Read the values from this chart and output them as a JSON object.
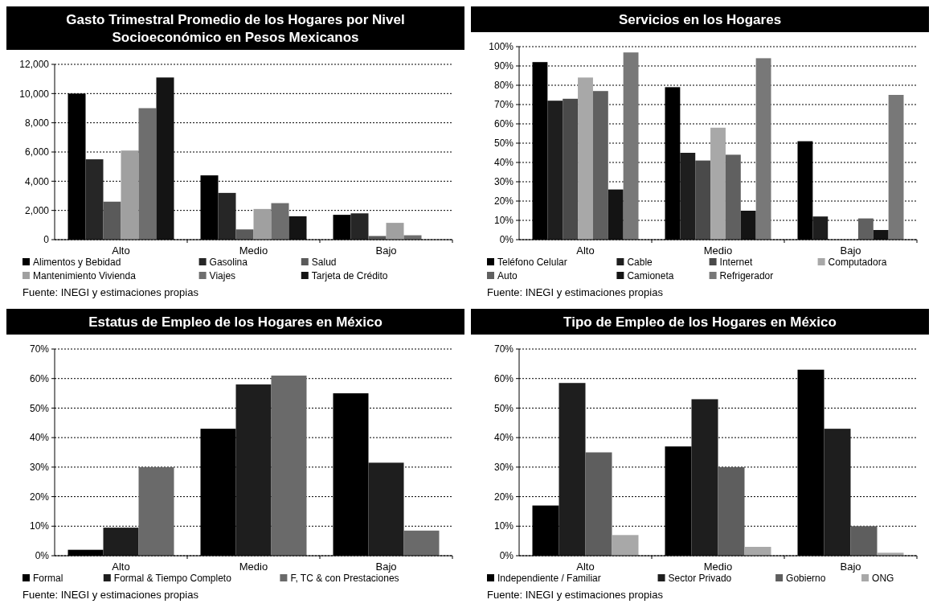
{
  "chart_data": [
    {
      "type": "bar",
      "title": "Gasto Trimestral Promedio de los Hogares por Nivel Socioeconómico en Pesos Mexicanos",
      "categories": [
        "Alto",
        "Medio",
        "Bajo"
      ],
      "series": [
        {
          "name": "Alimentos y Bebidad",
          "color": "#000000",
          "values": [
            10000,
            4400,
            1700
          ]
        },
        {
          "name": "Gasolina",
          "color": "#262626",
          "values": [
            5500,
            3200,
            1800
          ]
        },
        {
          "name": "Salud",
          "color": "#5a5a5a",
          "values": [
            2600,
            700,
            250
          ]
        },
        {
          "name": "Mantenimiento Vivienda",
          "color": "#a0a0a0",
          "values": [
            6100,
            2100,
            1150
          ]
        },
        {
          "name": "Viajes",
          "color": "#6e6e6e",
          "values": [
            9000,
            2500,
            300
          ]
        },
        {
          "name": "Tarjeta de Crédito",
          "color": "#141414",
          "values": [
            11100,
            1600,
            null
          ]
        }
      ],
      "ylim": [
        0,
        12000
      ],
      "yticks": [
        0,
        {
          "value": 2000,
          "label": "2,000"
        },
        {
          "value": 4000,
          "label": "4,000"
        },
        {
          "value": 6000,
          "label": "6,000"
        },
        {
          "value": 8000,
          "label": "8,000"
        },
        {
          "value": 10000,
          "label": "10,000"
        },
        {
          "value": 12000,
          "label": "12,000"
        }
      ],
      "grid": "y",
      "legend": "bottom",
      "annotations": [
        "Fuente: INEGI y estimaciones propias"
      ]
    },
    {
      "type": "bar",
      "title": "Servicios en los Hogares",
      "categories": [
        "Alto",
        "Medio",
        "Bajo"
      ],
      "series": [
        {
          "name": "Teléfono Celular",
          "color": "#000000",
          "values": [
            92,
            79,
            51
          ]
        },
        {
          "name": "Cable",
          "color": "#1e1e1e",
          "values": [
            72,
            45,
            12
          ]
        },
        {
          "name": "Internet",
          "color": "#4a4a4a",
          "values": [
            73,
            41,
            0
          ]
        },
        {
          "name": "Computadora",
          "color": "#a8a8a8",
          "values": [
            84,
            58,
            0
          ]
        },
        {
          "name": "Auto",
          "color": "#606060",
          "values": [
            77,
            44,
            11
          ]
        },
        {
          "name": "Camioneta",
          "color": "#141414",
          "values": [
            26,
            15,
            5
          ]
        },
        {
          "name": "Refrigerador",
          "color": "#787878",
          "values": [
            97,
            94,
            75
          ]
        }
      ],
      "ylim": [
        0,
        100
      ],
      "yticks": [
        {
          "value": 0,
          "label": "0%"
        },
        {
          "value": 10,
          "label": "10%"
        },
        {
          "value": 20,
          "label": "20%"
        },
        {
          "value": 30,
          "label": "30%"
        },
        {
          "value": 40,
          "label": "40%"
        },
        {
          "value": 50,
          "label": "50%"
        },
        {
          "value": 60,
          "label": "60%"
        },
        {
          "value": 70,
          "label": "70%"
        },
        {
          "value": 80,
          "label": "80%"
        },
        {
          "value": 90,
          "label": "90%"
        },
        {
          "value": 100,
          "label": "100%"
        }
      ],
      "grid": "y",
      "legend": "bottom",
      "annotations": [
        "Fuente: INEGI y estimaciones propias"
      ]
    },
    {
      "type": "bar",
      "title": "Estatus de Empleo de los Hogares en México",
      "categories": [
        "Alto",
        "Medio",
        "Bajo"
      ],
      "series": [
        {
          "name": "Formal",
          "color": "#000000",
          "values": [
            2,
            43,
            55
          ]
        },
        {
          "name": "Formal & Tiempo Completo",
          "color": "#1e1e1e",
          "values": [
            9.5,
            58,
            31.5
          ]
        },
        {
          "name": "F, TC & con Prestaciones",
          "color": "#6a6a6a",
          "values": [
            30,
            61,
            8.5
          ]
        }
      ],
      "ylim": [
        0,
        70
      ],
      "yticks": [
        {
          "value": 0,
          "label": "0%"
        },
        {
          "value": 10,
          "label": "10%"
        },
        {
          "value": 20,
          "label": "20%"
        },
        {
          "value": 30,
          "label": "30%"
        },
        {
          "value": 40,
          "label": "40%"
        },
        {
          "value": 50,
          "label": "50%"
        },
        {
          "value": 60,
          "label": "60%"
        },
        {
          "value": 70,
          "label": "70%"
        }
      ],
      "grid": "y",
      "legend": "bottom",
      "annotations": [
        "Fuente: INEGI y estimaciones propias"
      ]
    },
    {
      "type": "bar",
      "title": "Tipo de Empleo de los Hogares en México",
      "categories": [
        "Alto",
        "Medio",
        "Bajo"
      ],
      "series": [
        {
          "name": "Independiente / Familiar",
          "color": "#000000",
          "values": [
            17,
            37,
            63
          ]
        },
        {
          "name": "Sector Privado",
          "color": "#1e1e1e",
          "values": [
            58.5,
            53,
            43
          ]
        },
        {
          "name": "Gobierno",
          "color": "#5e5e5e",
          "values": [
            35,
            30,
            10
          ]
        },
        {
          "name": "ONG",
          "color": "#a8a8a8",
          "values": [
            7,
            3,
            1
          ]
        }
      ],
      "ylim": [
        0,
        70
      ],
      "yticks": [
        {
          "value": 0,
          "label": "0%"
        },
        {
          "value": 10,
          "label": "10%"
        },
        {
          "value": 20,
          "label": "20%"
        },
        {
          "value": 30,
          "label": "30%"
        },
        {
          "value": 40,
          "label": "40%"
        },
        {
          "value": 50,
          "label": "50%"
        },
        {
          "value": 60,
          "label": "60%"
        },
        {
          "value": 70,
          "label": "70%"
        }
      ],
      "grid": "y",
      "legend": "bottom",
      "annotations": [
        "Fuente: INEGI y estimaciones propias"
      ]
    }
  ]
}
